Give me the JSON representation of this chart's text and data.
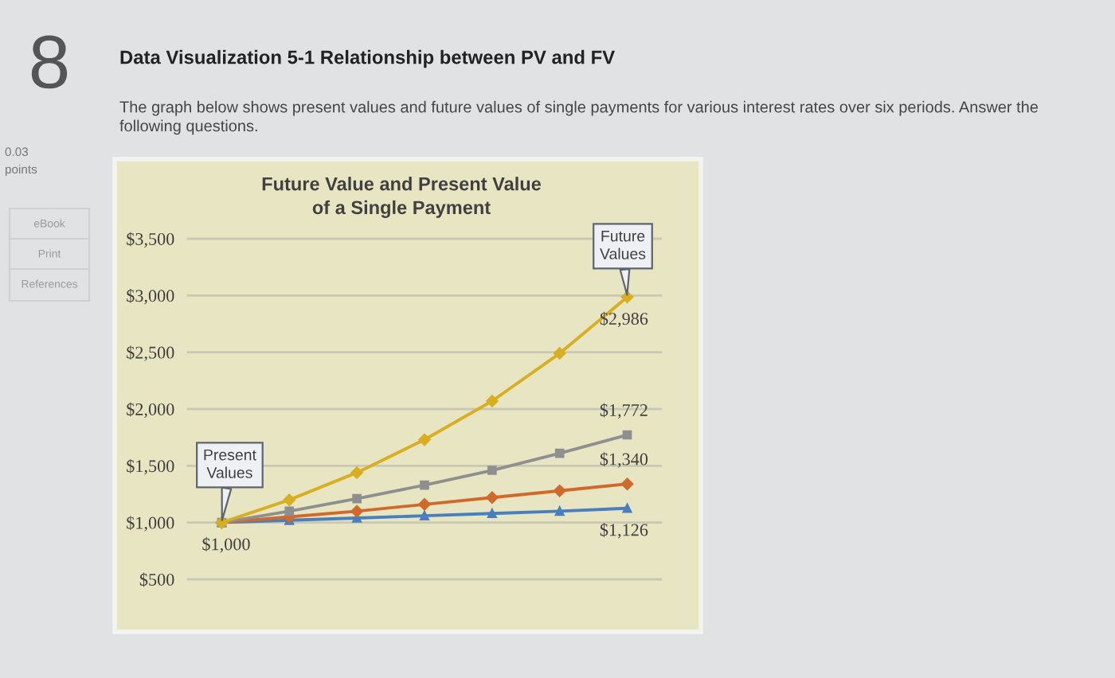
{
  "chart_data": {
    "type": "line",
    "title": "Future Value and Present Value of a Single Payment",
    "categories": [
      null,
      null,
      null,
      null,
      null,
      null,
      null
    ],
    "series": [
      {
        "color": "#4a7fbd",
        "marker": "triangle",
        "values": [
          1000,
          1020,
          1040,
          1060,
          1080,
          1100,
          1126
        ],
        "value_labels": [
          "$1,000",
          null,
          null,
          null,
          null,
          null,
          "$1,126"
        ]
      },
      {
        "color": "#cf6a2c",
        "marker": "diamond",
        "values": [
          1000,
          1050,
          1100,
          1160,
          1220,
          1280,
          1340
        ],
        "value_labels": [
          null,
          null,
          null,
          null,
          null,
          null,
          "$1,340"
        ]
      },
      {
        "color": "#8f8f8f",
        "marker": "square",
        "values": [
          1000,
          1100,
          1210,
          1330,
          1460,
          1610,
          1772
        ],
        "value_labels": [
          null,
          null,
          null,
          null,
          null,
          null,
          "$1,772"
        ]
      },
      {
        "color": "#d8ae22",
        "marker": "diamond",
        "values": [
          1000,
          1200,
          1440,
          1730,
          2070,
          2490,
          2986
        ],
        "value_labels": [
          null,
          null,
          null,
          null,
          null,
          null,
          "$2,986"
        ]
      }
    ],
    "ylim": [
      500,
      3500
    ],
    "yticks": [
      {
        "value": 500,
        "label": "$500"
      },
      {
        "value": 1000,
        "label": "$1,000"
      },
      {
        "value": 1500,
        "label": "$1,500"
      },
      {
        "value": 2000,
        "label": "$2,000"
      },
      {
        "value": 2500,
        "label": "$2,500"
      },
      {
        "value": 3000,
        "label": "$3,000"
      },
      {
        "value": 3500,
        "label": "$3,500"
      }
    ],
    "grid": "y",
    "tick_labels": "y",
    "line_style": "solid",
    "annotations": [
      "8",
      "Data Visualization 5-1 Relationship between PV and FV",
      "The graph below shows present values and future values of single payments for various interest rates over six periods. Answer the following questions.",
      "0.03",
      "points",
      "eBook",
      "Print",
      "References",
      {
        "text": "Present Values",
        "y": 1000
      },
      {
        "text": "Future Values",
        "y": 2986
      }
    ]
  }
}
